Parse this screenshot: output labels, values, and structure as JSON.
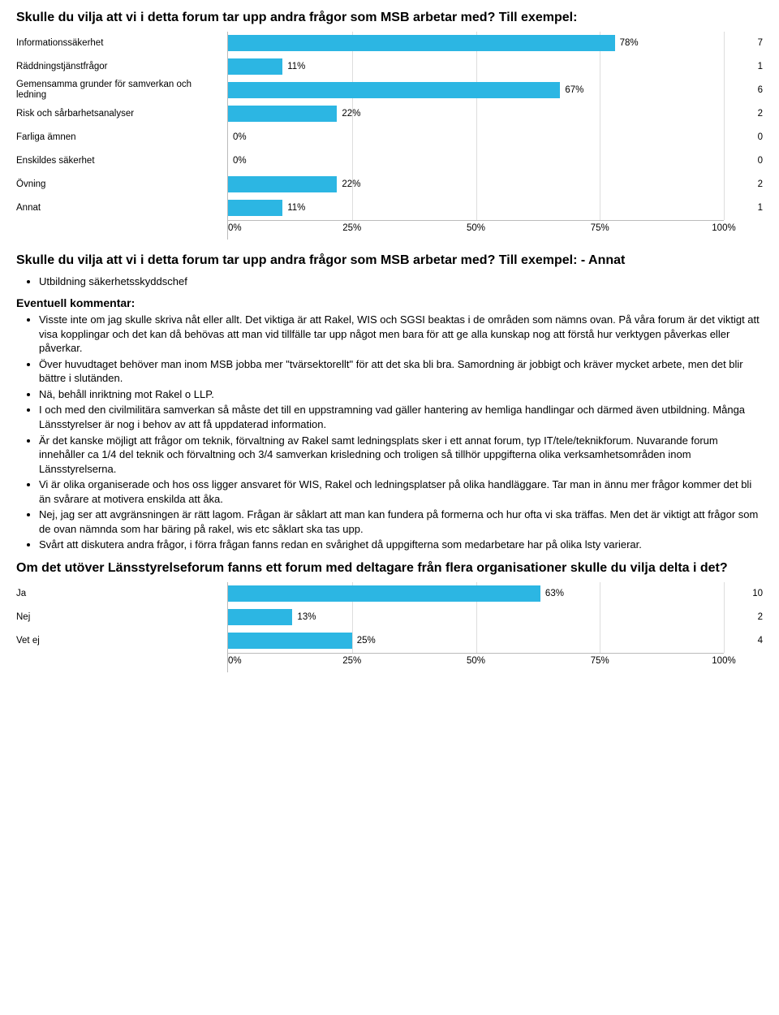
{
  "title1": "Skulle du vilja att vi i detta forum tar upp andra frågor som MSB arbetar med? Till exempel:",
  "chart1": {
    "type": "bar",
    "bar_color": "#2cb6e3",
    "grid_color": "#dddddd",
    "axis_color": "#bbbbbb",
    "label_fontsize": 11.5,
    "xlim": [
      0,
      100
    ],
    "ticks": [
      0,
      25,
      50,
      75,
      100
    ],
    "rows": [
      {
        "label": "Informationssäkerhet",
        "pct": 78,
        "count": 7
      },
      {
        "label": "Räddningstjänstfrågor",
        "pct": 11,
        "count": 1
      },
      {
        "label": "Gemensamma grunder för samverkan och ledning",
        "pct": 67,
        "count": 6
      },
      {
        "label": "Risk och sårbarhetsanalyser",
        "pct": 22,
        "count": 2
      },
      {
        "label": "Farliga ämnen",
        "pct": 0,
        "count": 0
      },
      {
        "label": "Enskildes säkerhet",
        "pct": 0,
        "count": 0
      },
      {
        "label": "Övning",
        "pct": 22,
        "count": 2
      },
      {
        "label": "Annat",
        "pct": 11,
        "count": 1
      }
    ]
  },
  "title2": "Skulle du vilja att vi i detta forum tar upp andra frågor som MSB arbetar med? Till exempel: - Annat",
  "annat_bullets": [
    "Utbildning säkerhetsskyddschef"
  ],
  "eventuell_heading": "Eventuell kommentar:",
  "eventuell_bullets": [
    "Visste inte om jag skulle skriva nåt eller allt. Det viktiga är att Rakel, WIS och SGSI beaktas i de områden som nämns ovan. På våra forum är det viktigt att visa kopplingar och det kan då behövas att man vid tillfälle tar upp något men bara för att ge alla kunskap nog att förstå hur verktygen påverkas eller påverkar.",
    "Över huvudtaget behöver man inom MSB jobba mer \"tvärsektorellt\" för att det ska bli bra. Samordning är jobbigt och kräver mycket arbete, men det blir bättre i slutänden.",
    "Nä, behåll inriktning mot Rakel o LLP.",
    "I och med den civilmilitära samverkan så måste det till en uppstramning vad gäller hantering av hemliga handlingar och därmed även utbildning. Många Länsstyrelser är nog i behov av att få uppdaterad information.",
    "Är det kanske möjligt att frågor om teknik, förvaltning av Rakel samt ledningsplats sker i ett annat forum, typ IT/tele/teknikforum. Nuvarande forum innehåller ca 1/4 del teknik och förvaltning och 3/4 samverkan krisledning och troligen så tillhör uppgifterna olika verksamhetsområden inom Länsstyrelserna.",
    "Vi är olika organiserade och hos oss ligger ansvaret för WIS, Rakel och ledningsplatser på olika handläggare. Tar man in ännu mer frågor kommer det bli än svårare at motivera enskilda att åka.",
    "Nej, jag ser att avgränsningen är rätt lagom. Frågan är såklart att man kan fundera på formerna och hur ofta vi ska träffas. Men det är viktigt att frågor som de ovan nämnda som har bäring på rakel, wis etc såklart ska tas upp.",
    "Svårt att diskutera andra frågor, i förra frågan fanns redan en svårighet då uppgifterna som medarbetare har på olika lsty varierar."
  ],
  "title3": "Om det utöver Länsstyrelseforum fanns ett forum med deltagare från flera organisationer skulle du vilja delta i det?",
  "chart2": {
    "type": "bar",
    "bar_color": "#2cb6e3",
    "grid_color": "#dddddd",
    "axis_color": "#bbbbbb",
    "label_fontsize": 11.5,
    "xlim": [
      0,
      100
    ],
    "ticks": [
      0,
      25,
      50,
      75,
      100
    ],
    "rows": [
      {
        "label": "Ja",
        "pct": 63,
        "count": 10
      },
      {
        "label": "Nej",
        "pct": 13,
        "count": 2
      },
      {
        "label": "Vet ej",
        "pct": 25,
        "count": 4
      }
    ]
  }
}
